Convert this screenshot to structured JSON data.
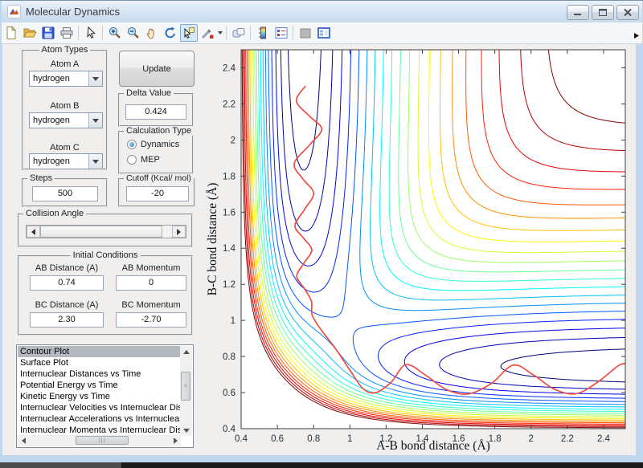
{
  "window": {
    "title": "Molecular Dynamics",
    "controls": [
      "minimize",
      "maximize",
      "close"
    ]
  },
  "toolbar": {
    "tools": [
      "new-figure",
      "open-file",
      "save-figure",
      "print-figure",
      "edit-plot",
      "zoom-in",
      "zoom-out",
      "pan",
      "rotate-3d",
      "data-cursor",
      "brush-data",
      "link-plot",
      "insert-colorbar",
      "insert-legend",
      "hide-plot-tools",
      "show-plot-tools"
    ],
    "selected_tool": "data-cursor"
  },
  "sidebar": {
    "atom_types": {
      "title": "Atom Types",
      "fields": [
        {
          "label": "Atom A",
          "value": "hydrogen"
        },
        {
          "label": "Atom B",
          "value": "hydrogen"
        },
        {
          "label": "Atom C",
          "value": "hydrogen"
        }
      ]
    },
    "update_label": "Update",
    "delta": {
      "title": "Delta Value",
      "value": "0.424"
    },
    "calculation_type": {
      "title": "Calculation Type",
      "options": [
        {
          "label": "Dynamics",
          "selected": true
        },
        {
          "label": "MEP",
          "selected": false
        }
      ]
    },
    "steps": {
      "title": "Steps",
      "value": "500"
    },
    "cutoff": {
      "title": "Cutoff (Kcal/ mol)",
      "value": "-20"
    },
    "collision": {
      "title": "Collision Angle"
    },
    "initial_conditions": {
      "title": "Initial Conditions",
      "fields": [
        {
          "label": "AB Distance (A)",
          "value": "0.74"
        },
        {
          "label": "AB Momentum",
          "value": "0"
        },
        {
          "label": "BC Distance (A)",
          "value": "2.30"
        },
        {
          "label": "BC Momentum",
          "value": "-2.70"
        }
      ]
    },
    "plot_list": {
      "items": [
        "Contour Plot",
        "Surface Plot",
        "Internuclear Distances vs Time",
        "Potential Energy vs Time",
        "Kinetic Energy vs Time",
        "Internuclear Velocities vs Internuclear Distance",
        "Internuclear Accelerations vs Internuclear Distance",
        "Internuclear Momenta vs Internuclear Distance"
      ],
      "selected_index": 0
    }
  },
  "chart_data": {
    "type": "contour",
    "xlabel": "A-B bond distance (Å)",
    "ylabel": "B-C bond distance (Å)",
    "xlim": [
      0.4,
      2.52
    ],
    "ylim": [
      0.4,
      2.5
    ],
    "xticks": {
      "values": [
        0.4,
        0.6,
        0.8,
        1.0,
        1.2,
        1.4,
        1.6,
        1.8,
        2.0,
        2.2,
        2.4
      ],
      "labels": [
        "0.4",
        "0.6",
        "0.8",
        "1",
        "1.2",
        "1.4",
        "1.6",
        "1.8",
        "2",
        "2.2",
        "2.4"
      ]
    },
    "yticks": {
      "values": [
        0.4,
        0.6,
        0.8,
        1.0,
        1.2,
        1.4,
        1.6,
        1.8,
        2.0,
        2.2,
        2.4
      ],
      "labels": [
        "0.4",
        "0.6",
        "0.8",
        "1",
        "1.2",
        "1.4",
        "1.6",
        "1.8",
        "2",
        "2.2",
        "2.4"
      ]
    },
    "grid": false,
    "colormap": "jet",
    "surface_model": {
      "name": "collinear-LEPS-H3-potential",
      "D_kcal_mol": 109.46,
      "alpha_inv_A": 1.9426,
      "re_A": 0.7414,
      "sato": 0
    },
    "levels_kcal_mol": [
      -105.0,
      -100.3,
      -95.6,
      -90.8,
      -86.1,
      -81.4,
      -76.7,
      -71.9,
      -67.2,
      -62.5,
      -57.8,
      -53.1,
      -48.3,
      -43.6,
      -38.9,
      -34.2,
      -29.4,
      -24.7,
      -20.0,
      -15.3
    ],
    "trajectory": {
      "color": "#ef4b42",
      "points": [
        [
          0.755,
          2.3
        ],
        [
          0.705,
          2.215
        ],
        [
          0.78,
          2.13
        ],
        [
          0.845,
          2.06
        ],
        [
          0.78,
          1.975
        ],
        [
          0.693,
          1.87
        ],
        [
          0.74,
          1.785
        ],
        [
          0.8,
          1.705
        ],
        [
          0.75,
          1.615
        ],
        [
          0.697,
          1.525
        ],
        [
          0.745,
          1.455
        ],
        [
          0.79,
          1.39
        ],
        [
          0.745,
          1.315
        ],
        [
          0.707,
          1.245
        ],
        [
          0.75,
          1.175
        ],
        [
          0.788,
          1.105
        ],
        [
          0.792,
          1.03
        ],
        [
          0.84,
          0.95
        ],
        [
          0.92,
          0.845
        ],
        [
          1.0,
          0.725
        ],
        [
          1.075,
          0.62
        ],
        [
          1.145,
          0.6
        ],
        [
          1.23,
          0.66
        ],
        [
          1.31,
          0.755
        ],
        [
          1.42,
          0.695
        ],
        [
          1.53,
          0.618
        ],
        [
          1.65,
          0.592
        ],
        [
          1.78,
          0.65
        ],
        [
          1.9,
          0.752
        ],
        [
          2.01,
          0.7
        ],
        [
          2.13,
          0.618
        ],
        [
          2.25,
          0.594
        ],
        [
          2.37,
          0.66
        ],
        [
          2.48,
          0.748
        ],
        [
          2.52,
          0.76
        ]
      ]
    }
  }
}
